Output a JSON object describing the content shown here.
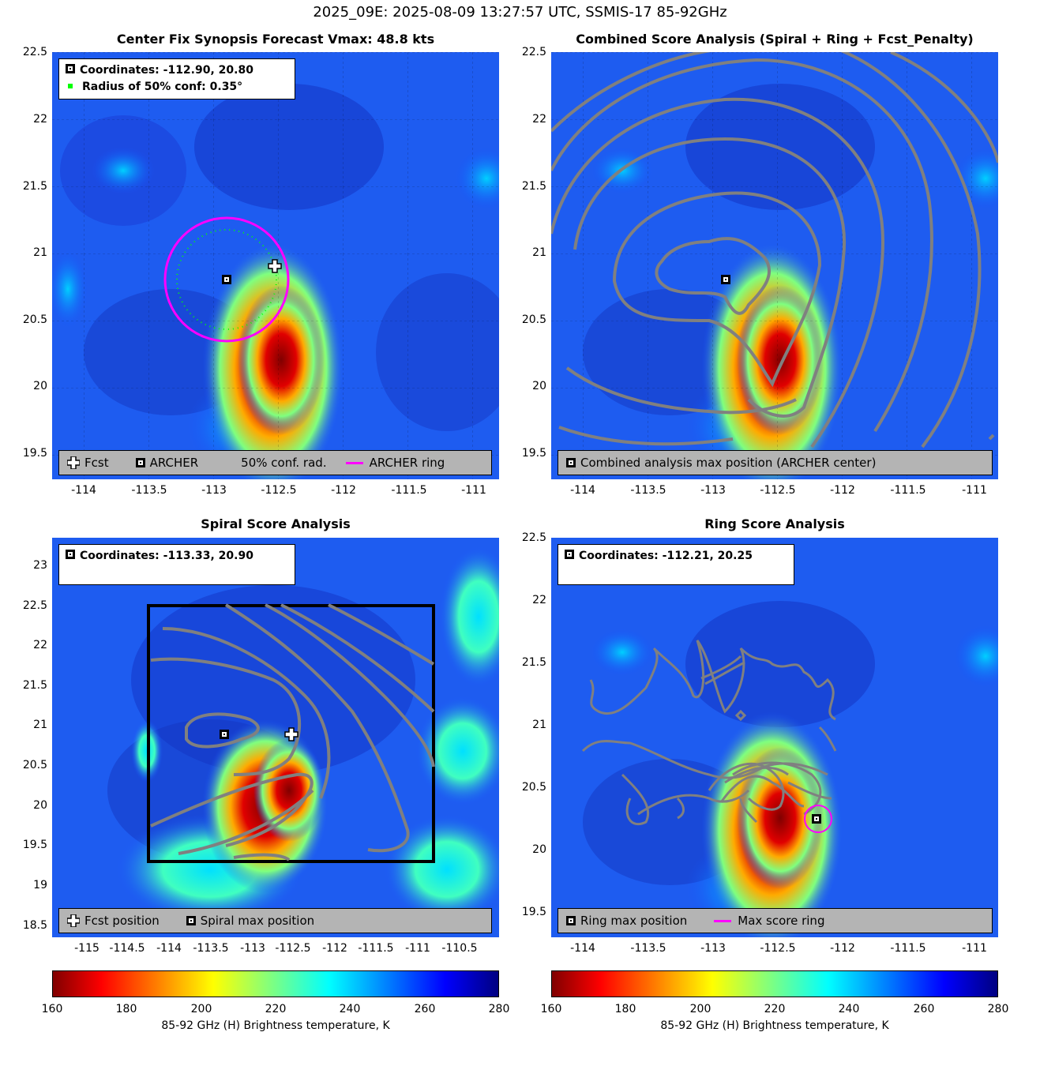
{
  "figure_title": "2025_09E: 2025-08-09 13:27:57 UTC, SSMIS-17 85-92GHz",
  "colors": {
    "archer_ring": "#ff00ff",
    "conf_radius": "#00ff00",
    "contour": "#808080",
    "legend_bg": "#b4b4b4"
  },
  "panels": {
    "synopsis": {
      "title": "Center Fix Synopsis     Forecast Vmax: 48.8 kts",
      "info_coords": "Coordinates: -112.90, 20.80",
      "info_radius": "Radius of 50% conf: 0.35°",
      "legend_fcst": "Fcst",
      "legend_archer": "ARCHER",
      "legend_conf": "50% conf. rad.",
      "legend_ring": "ARCHER ring",
      "xticks": [
        "-114",
        "-113.5",
        "-113",
        "-112.5",
        "-112",
        "-111.5",
        "-111"
      ],
      "yticks": [
        "22.5",
        "22",
        "21.5",
        "21",
        "20.5",
        "20",
        "19.5"
      ],
      "xlim": [
        -114.35,
        -110.8
      ],
      "ylim": [
        19.3,
        22.55
      ],
      "archer_center": [
        -112.9,
        20.8
      ],
      "fcst_position": [
        -112.51,
        20.9
      ],
      "archer_ring_radius_deg": 0.47,
      "conf_radius_deg": 0.35
    },
    "combined": {
      "title": "Combined Score Analysis (Spiral + Ring + Fcst_Penalty)",
      "legend_text": "Combined analysis max position (ARCHER center)",
      "xticks": [
        "-114",
        "-113.5",
        "-113",
        "-112.5",
        "-112",
        "-111.5",
        "-111"
      ],
      "yticks": [
        "22.5",
        "22",
        "21.5",
        "21",
        "20.5",
        "20",
        "19.5"
      ],
      "xlim": [
        -114.35,
        -110.8
      ],
      "ylim": [
        19.3,
        22.55
      ],
      "max_position": [
        -112.9,
        20.8
      ]
    },
    "spiral": {
      "title": "Spiral Score Analysis",
      "info_coords": "Coordinates: -113.33, 20.90",
      "legend_fcst": "Fcst position",
      "legend_spiral": "Spiral max position",
      "xticks": [
        "-115",
        "-114.5",
        "-114",
        "-113.5",
        "-113",
        "-112.5",
        "-112",
        "-111.5",
        "-111",
        "-110.5"
      ],
      "yticks": [
        "23",
        "22.5",
        "22",
        "21.5",
        "21",
        "20.5",
        "20",
        "19.5",
        "19",
        "18.5"
      ],
      "xlim": [
        -115.3,
        -110.2
      ],
      "ylim": [
        18.35,
        23.3
      ],
      "max_position": [
        -113.33,
        20.9
      ],
      "fcst_position": [
        -112.51,
        20.9
      ],
      "box": [
        -114.3,
        19.3,
        -111.0,
        22.5
      ]
    },
    "ring": {
      "title": "Ring Score Analysis",
      "info_coords": "Coordinates: -112.21, 20.25",
      "legend_ring_max": "Ring max position",
      "legend_max_ring": "Max score ring",
      "xticks": [
        "-114",
        "-113.5",
        "-113",
        "-112.5",
        "-112",
        "-111.5",
        "-111"
      ],
      "yticks": [
        "22.5",
        "22",
        "21.5",
        "21",
        "20.5",
        "20",
        "19.5"
      ],
      "xlim": [
        -114.35,
        -110.8
      ],
      "ylim": [
        19.3,
        22.55
      ],
      "max_position": [
        -112.21,
        20.25
      ]
    }
  },
  "colorbars": [
    {
      "ticks": [
        "160",
        "180",
        "200",
        "220",
        "240",
        "260",
        "280"
      ],
      "label": "85-92 GHz (H) Brightness temperature, K"
    },
    {
      "ticks": [
        "160",
        "180",
        "200",
        "220",
        "240",
        "260",
        "280"
      ],
      "label": "85-92 GHz (H) Brightness temperature, K"
    }
  ],
  "chart_data": [
    {
      "type": "heatmap",
      "title": "Center Fix Synopsis     Forecast Vmax: 48.8 kts",
      "xlabel": "",
      "ylabel": "",
      "xlim": [
        -114.35,
        -110.8
      ],
      "ylim": [
        19.3,
        22.55
      ],
      "clim": [
        160,
        280
      ],
      "cold_core": {
        "lon": -112.55,
        "lat": 20.3,
        "min_temp_K": 165
      }
    },
    {
      "type": "heatmap",
      "title": "Combined Score Analysis (Spiral + Ring + Fcst_Penalty)",
      "xlim": [
        -114.35,
        -110.8
      ],
      "ylim": [
        19.3,
        22.55
      ],
      "clim": [
        160,
        280
      ]
    },
    {
      "type": "heatmap",
      "title": "Spiral Score Analysis",
      "xlim": [
        -115.3,
        -110.2
      ],
      "ylim": [
        18.35,
        23.3
      ],
      "clim": [
        160,
        280
      ]
    },
    {
      "type": "heatmap",
      "title": "Ring Score Analysis",
      "xlim": [
        -114.35,
        -110.8
      ],
      "ylim": [
        19.3,
        22.55
      ],
      "clim": [
        160,
        280
      ]
    }
  ]
}
